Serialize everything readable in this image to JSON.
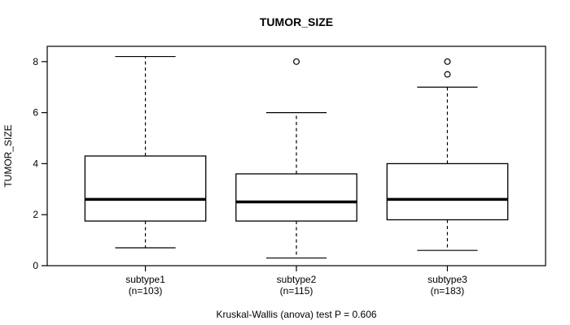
{
  "title": "TUMOR_SIZE",
  "colors": {
    "stroke": "#000000",
    "background": "#ffffff",
    "box_fill": "#ffffff"
  },
  "chart_data": {
    "type": "boxplot",
    "title": "TUMOR_SIZE",
    "xlabel": "",
    "ylabel": "TUMOR_SIZE",
    "yticks": [
      0,
      2,
      4,
      6,
      8
    ],
    "ylim": [
      0,
      8.6
    ],
    "grid": false,
    "legend_position": "none",
    "annotation": "Kruskal-Wallis (anova) test P = 0.606",
    "groups": [
      {
        "label": "subtype1",
        "n_label": "(n=103)",
        "n": 103,
        "whisker_low": 0.7,
        "q1": 1.75,
        "median": 2.6,
        "q3": 4.3,
        "whisker_high": 8.2,
        "outliers": []
      },
      {
        "label": "subtype2",
        "n_label": "(n=115)",
        "n": 115,
        "whisker_low": 0.3,
        "q1": 1.75,
        "median": 2.5,
        "q3": 3.6,
        "whisker_high": 6.0,
        "outliers": [
          8.0
        ]
      },
      {
        "label": "subtype3",
        "n_label": "(n=183)",
        "n": 183,
        "whisker_low": 0.6,
        "q1": 1.8,
        "median": 2.6,
        "q3": 4.0,
        "whisker_high": 7.0,
        "outliers": [
          7.5,
          8.0
        ]
      }
    ]
  }
}
